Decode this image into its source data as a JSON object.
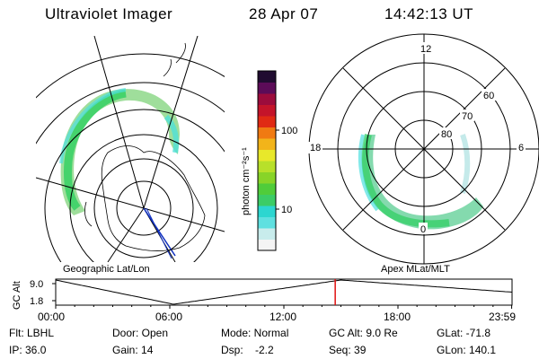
{
  "header": {
    "title": "Ultraviolet Imager",
    "date": "28 Apr 07",
    "time": "14:42:13 UT"
  },
  "panels": {
    "left_caption": "Geographic Lat/Lon",
    "right_caption": "Apex MLat/MLT",
    "polar_labels": {
      "top": "12",
      "left": "18",
      "right": "6",
      "bottom": "0",
      "ring60": "60",
      "ring70": "70",
      "ring80": "80"
    }
  },
  "colorbar": {
    "label": "photon cm⁻²s⁻¹",
    "tick_100": "100",
    "tick_10": "10",
    "colors": [
      "#f4f4f4",
      "#c8ecec",
      "#5fe0e0",
      "#2cd6d0",
      "#3ccc66",
      "#50cc3a",
      "#88d428",
      "#b8e02a",
      "#e8e82a",
      "#f2b41a",
      "#f07a12",
      "#e02a14",
      "#c4142a",
      "#9c0c3c",
      "#5c0c58",
      "#200c30"
    ]
  },
  "timeline": {
    "y_label": "GC Alt",
    "y_tick_top": "9.0",
    "y_tick_bottom": "1.8",
    "x_ticks": [
      "00:00",
      "06:00",
      "12:00",
      "18:00",
      "23:59"
    ],
    "marker_hour": 14.7,
    "marker_color": "#e01010"
  },
  "info": {
    "flt": "Flt: LBHL",
    "ip": "IP: 36.0",
    "door": "Door: Open",
    "gain": "Gain: 14",
    "mode": "Mode: Normal",
    "dsp": "Dsp:    -2.2",
    "gcalt": "GC Alt: 9.0 Re",
    "seq": "Seq: 39",
    "glat": "GLat: -71.8",
    "glon": "GLon: 140.1"
  }
}
